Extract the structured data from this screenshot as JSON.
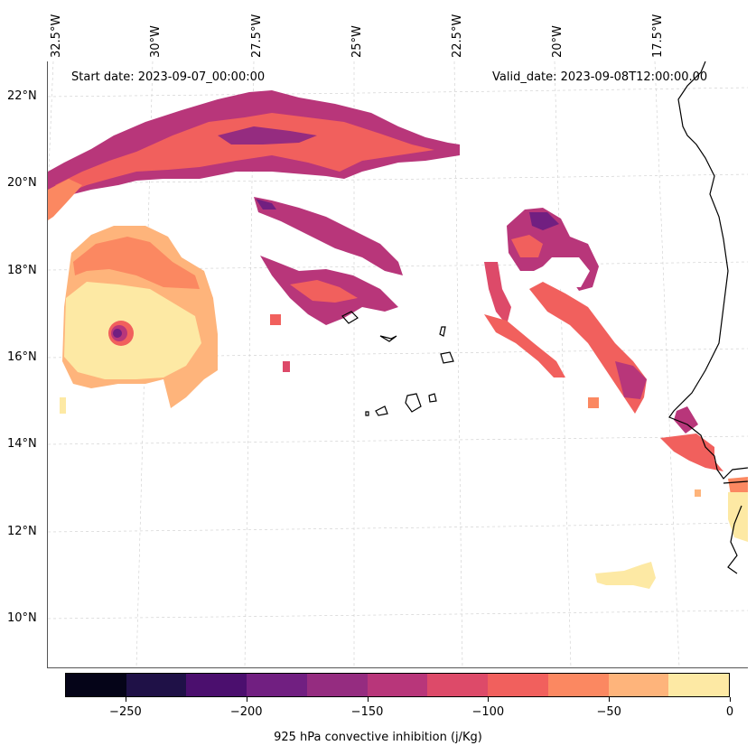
{
  "map": {
    "start_date": "Start date: 2023-09-07_00:00:00",
    "valid_date": "Valid_date: 2023-09-08T12:00:00.00",
    "lon_labels": [
      "32.5°W",
      "30°W",
      "27.5°W",
      "25°W",
      "22.5°W",
      "20°W",
      "17.5°W"
    ],
    "lat_labels": [
      "22°N",
      "20°N",
      "18°N",
      "16°N",
      "14°N",
      "12°N",
      "10°N"
    ]
  },
  "colorbar": {
    "title": "925 hPa convective inhibition (j/Kg)",
    "tick_labels": [
      "−250",
      "−200",
      "−150",
      "−100",
      "−50",
      "0"
    ],
    "levels": [
      -275,
      -250,
      -225,
      -200,
      -175,
      -150,
      -125,
      -100,
      -75,
      -50,
      -25,
      0
    ],
    "colors": [
      "#050418",
      "#1f1147",
      "#4b0f6e",
      "#711f81",
      "#952c80",
      "#b8367a",
      "#dd4a69",
      "#f1605d",
      "#fb8861",
      "#feb47b",
      "#fde9a4"
    ]
  },
  "colors": {
    "lightest": "#fde9a4",
    "light": "#feb47b",
    "orange": "#fb8861",
    "red": "#f1605d",
    "pink": "#dd4a69",
    "magenta": "#b8367a",
    "purple": "#952c80",
    "deep_purple": "#711f81",
    "dark": "#4b0f6e"
  }
}
